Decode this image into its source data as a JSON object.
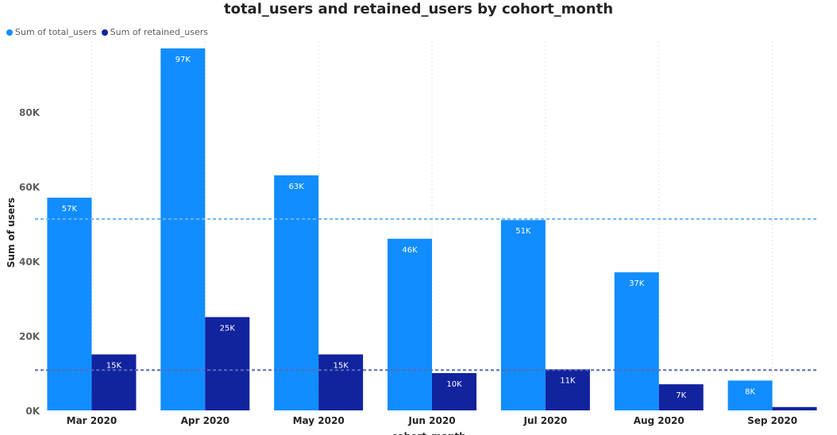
{
  "chart_data": {
    "type": "bar",
    "title": "total_users and retained_users by cohort_month",
    "xlabel": "cohort_month",
    "ylabel": "Sum of users",
    "categories": [
      "Mar 2020",
      "Apr 2020",
      "May 2020",
      "Jun 2020",
      "Jul 2020",
      "Aug 2020",
      "Sep 2020"
    ],
    "series": [
      {
        "name": "Sum of total_users",
        "color": "#118DFF",
        "values": [
          57000,
          97000,
          63000,
          46000,
          51000,
          37000,
          8000
        ],
        "labels": [
          "57K",
          "97K",
          "63K",
          "46K",
          "51K",
          "37K",
          "8K"
        ]
      },
      {
        "name": "Sum of retained_users",
        "color": "#12239E",
        "values": [
          15000,
          25000,
          15000,
          10000,
          11000,
          7000,
          900
        ],
        "labels": [
          "15K",
          "25K",
          "15K",
          "10K",
          "11K",
          "7K",
          ""
        ]
      }
    ],
    "reference_lines": [
      {
        "series": "Sum of total_users",
        "value": 51300,
        "color": "#6CB4F7",
        "style": "dashed"
      },
      {
        "series": "Sum of retained_users",
        "value": 10800,
        "color": "#5A6AB5",
        "style": "dashed"
      }
    ],
    "y_ticks": [
      0,
      20000,
      40000,
      60000,
      80000
    ],
    "y_tick_labels": [
      "0K",
      "20K",
      "40K",
      "60K",
      "80K"
    ],
    "ylim": [
      0,
      97000
    ],
    "grid": "vertical dotted between categories",
    "legend_position": "top-left"
  }
}
